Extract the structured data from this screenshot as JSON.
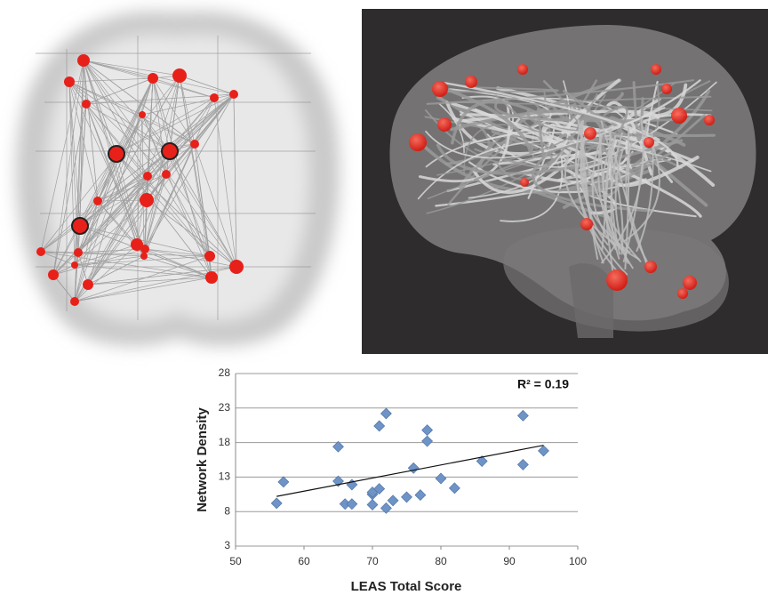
{
  "chart_data": {
    "type": "scatter",
    "x_label": "LEAS Total Score",
    "y_label": "Network Density",
    "annotation": "R² = 0.19",
    "xlim": [
      50,
      100
    ],
    "xticks": [
      50,
      60,
      70,
      80,
      90,
      100
    ],
    "ylim": [
      3,
      28
    ],
    "yticks": [
      3,
      8,
      13,
      18,
      23,
      28
    ],
    "grid": true,
    "color": "#6d93c7",
    "x": [
      56,
      57,
      65,
      65,
      66,
      67,
      67,
      70,
      70,
      70,
      71,
      71,
      72,
      72,
      73,
      75,
      76,
      77,
      78,
      78,
      80,
      82,
      86,
      92,
      92,
      95
    ],
    "values": [
      9.2,
      12.3,
      17.4,
      12.4,
      9.1,
      11.9,
      9.1,
      10.5,
      9.0,
      10.8,
      11.3,
      20.4,
      8.5,
      22.2,
      9.6,
      10.1,
      14.3,
      10.4,
      19.8,
      18.2,
      12.8,
      11.4,
      15.3,
      21.9,
      14.8,
      16.8
    ],
    "trendline": {
      "x": [
        56,
        95
      ],
      "values": [
        10.2,
        17.6
      ],
      "color": "#111111"
    }
  }
}
